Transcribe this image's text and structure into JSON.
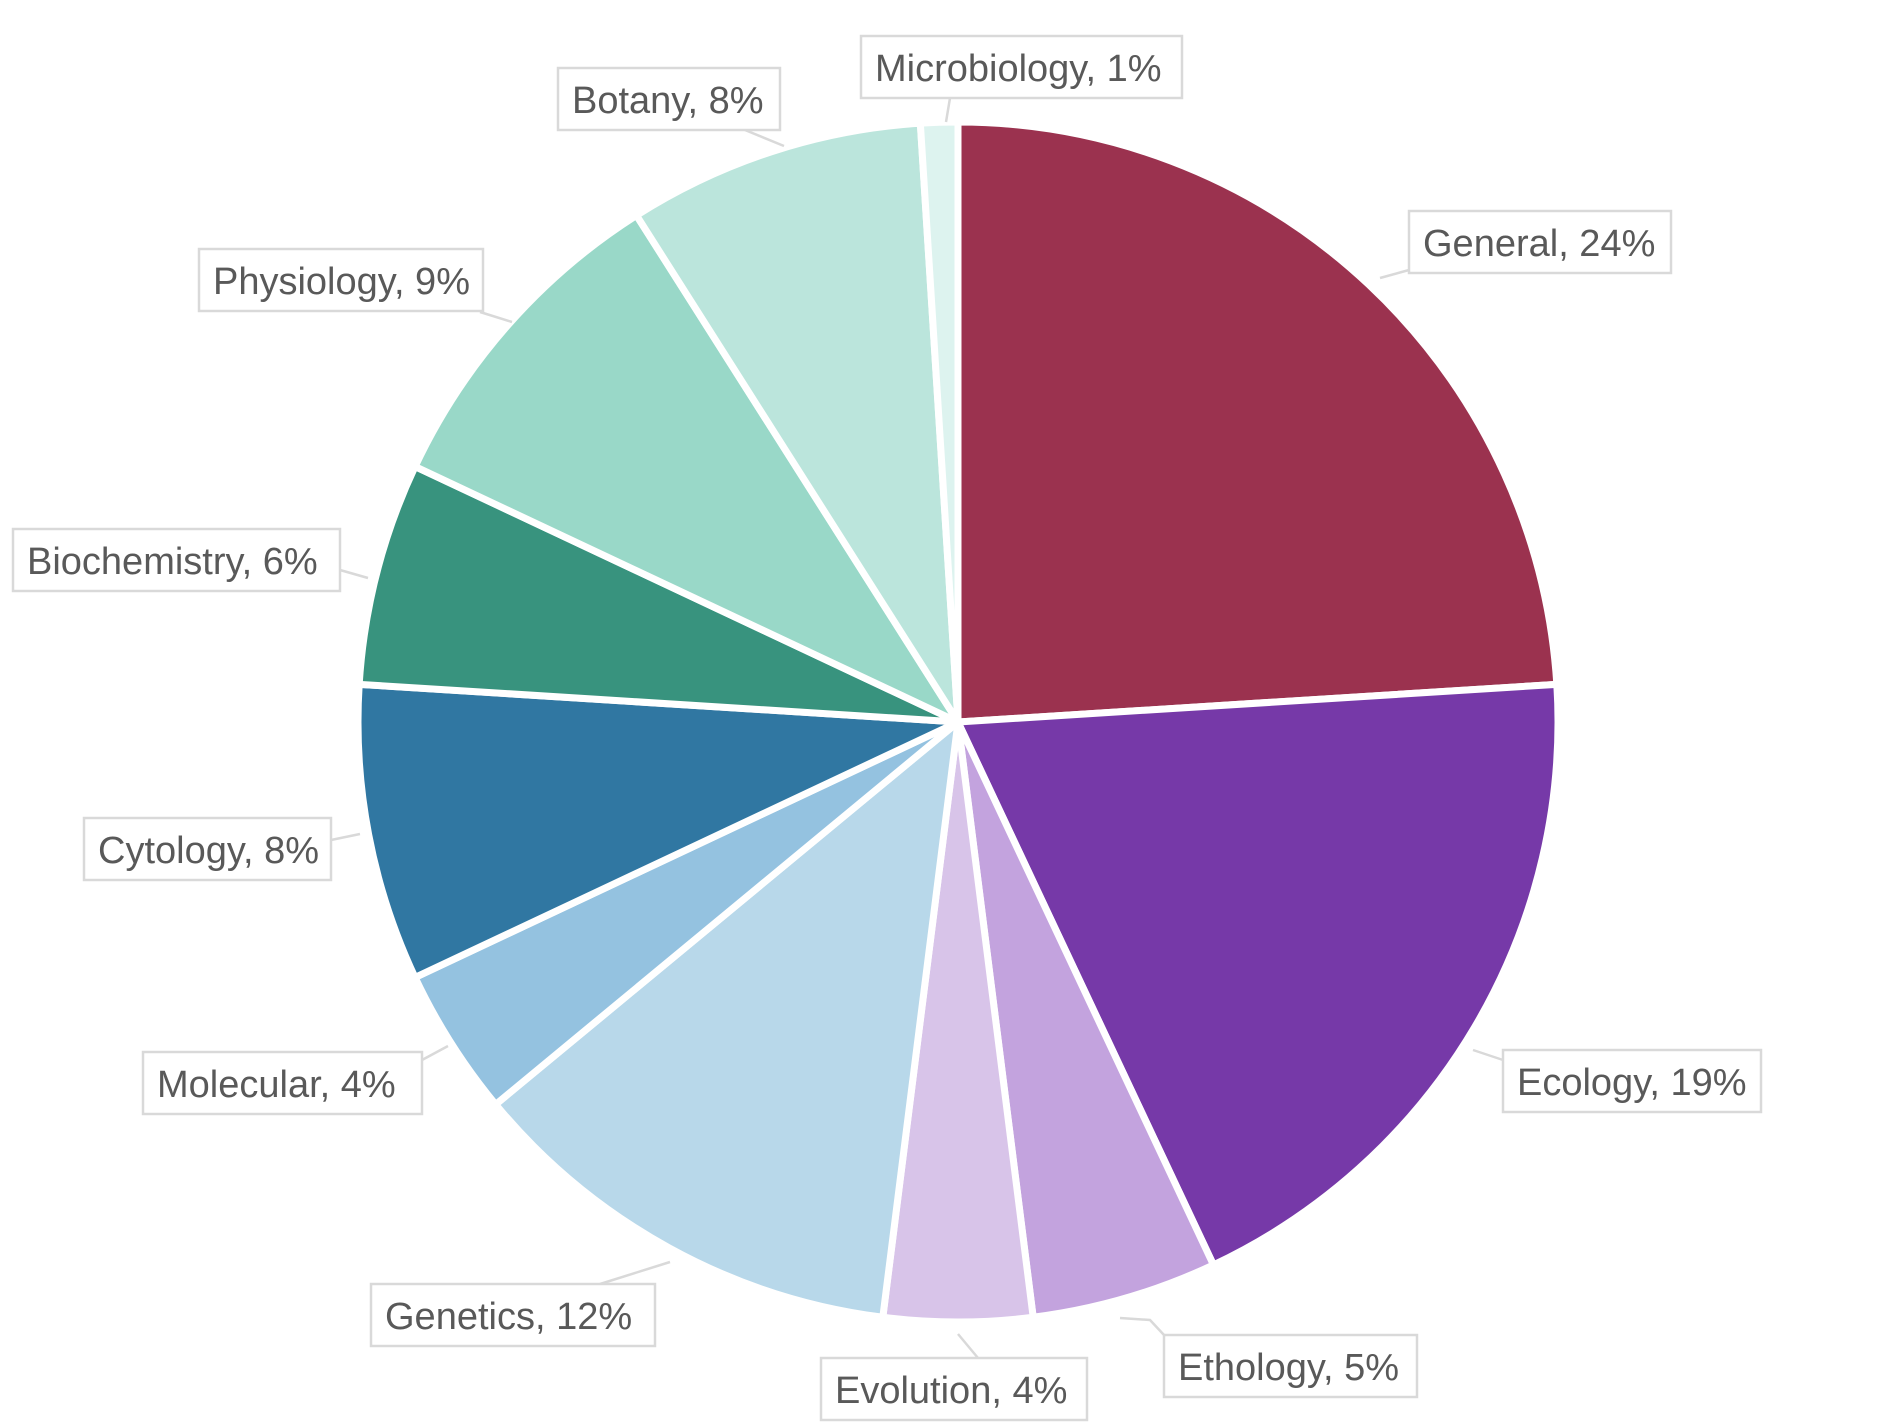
{
  "chart_data": {
    "type": "pie",
    "title": "",
    "start_angle_deg": 0,
    "direction": "clockwise",
    "slices": [
      {
        "name": "General",
        "value": 24,
        "label": "General, 24%",
        "color": "#9b324f"
      },
      {
        "name": "Ecology",
        "value": 19,
        "label": "Ecology, 19%",
        "color": "#7639a8"
      },
      {
        "name": "Ethology",
        "value": 5,
        "label": "Ethology, 5%",
        "color": "#c3a3de"
      },
      {
        "name": "Evolution",
        "value": 4,
        "label": "Evolution, 4%",
        "color": "#d8c4e9"
      },
      {
        "name": "Genetics",
        "value": 12,
        "label": "Genetics, 12%",
        "color": "#b8d8ea"
      },
      {
        "name": "Molecular",
        "value": 4,
        "label": "Molecular, 4%",
        "color": "#94c2e0"
      },
      {
        "name": "Cytology",
        "value": 8,
        "label": "Cytology, 8%",
        "color": "#3077a2"
      },
      {
        "name": "Biochemistry",
        "value": 6,
        "label": "Biochemistry, 6%",
        "color": "#38937e"
      },
      {
        "name": "Physiology",
        "value": 9,
        "label": "Physiology, 9%",
        "color": "#99d8c8"
      },
      {
        "name": "Botany",
        "value": 8,
        "label": "Botany, 8%",
        "color": "#bbe5dc"
      },
      {
        "name": "Microbiology",
        "value": 1,
        "label": "Microbiology, 1%",
        "color": "#ddf3ef"
      }
    ]
  }
}
